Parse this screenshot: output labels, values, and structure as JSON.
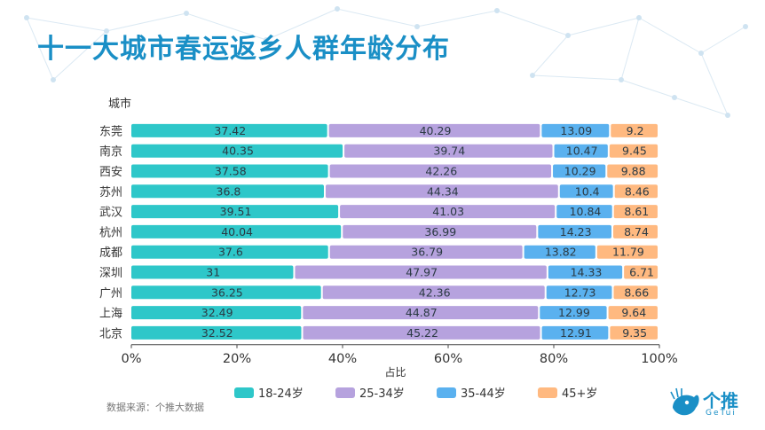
{
  "title": "十一大城市春运返乡人群年龄分布",
  "source": "数据来源：个推大数据",
  "logo": {
    "name": "个推",
    "sub": "GeTui"
  },
  "chart_data": {
    "type": "bar",
    "orientation": "horizontal",
    "stacked": "percent",
    "ylabel": "城市",
    "xlabel": "占比",
    "xlim": [
      0,
      100
    ],
    "xticks": [
      "0%",
      "20%",
      "40%",
      "60%",
      "80%",
      "100%"
    ],
    "categories": [
      "东莞",
      "南京",
      "西安",
      "苏州",
      "武汉",
      "杭州",
      "成都",
      "深圳",
      "广州",
      "上海",
      "北京"
    ],
    "series": [
      {
        "name": "18-24岁",
        "color": "#2ec7c9",
        "values": [
          37.42,
          40.35,
          37.58,
          36.8,
          39.51,
          40.04,
          37.6,
          31,
          36.25,
          32.49,
          32.52
        ]
      },
      {
        "name": "25-34岁",
        "color": "#b6a2de",
        "values": [
          40.29,
          39.74,
          42.26,
          44.34,
          41.03,
          36.99,
          36.79,
          47.97,
          42.36,
          44.87,
          45.22
        ]
      },
      {
        "name": "35-44岁",
        "color": "#5ab1ef",
        "values": [
          13.09,
          10.47,
          10.29,
          10.4,
          10.84,
          14.23,
          13.82,
          14.33,
          12.73,
          12.99,
          12.91
        ]
      },
      {
        "name": "45+岁",
        "color": "#ffb980",
        "values": [
          9.2,
          9.45,
          9.88,
          8.46,
          8.61,
          8.74,
          11.79,
          6.71,
          8.66,
          9.64,
          9.35
        ]
      }
    ]
  }
}
